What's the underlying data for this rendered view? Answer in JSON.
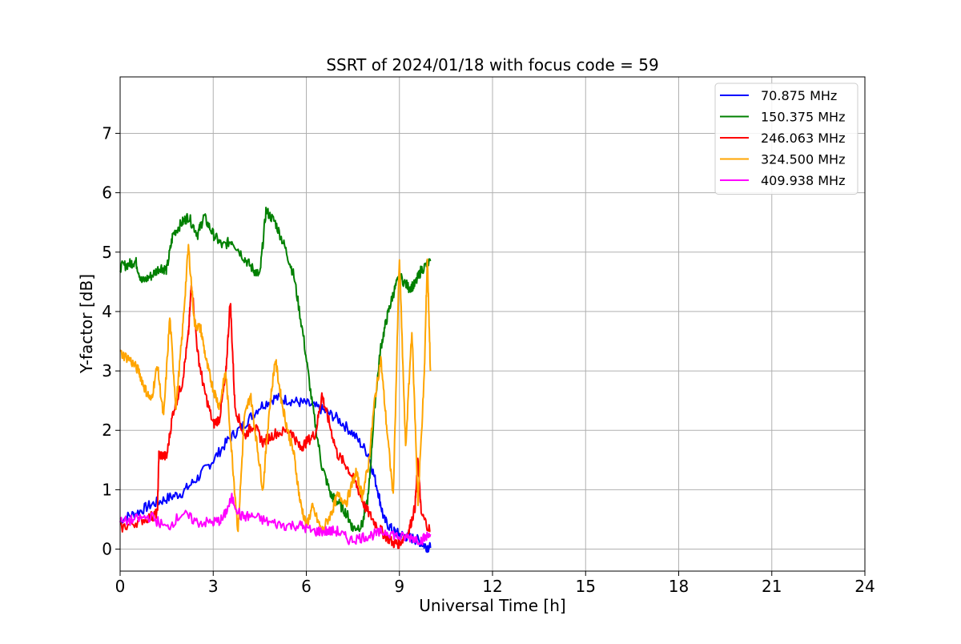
{
  "chart_data": {
    "type": "line",
    "title": "SSRT of 2024/01/18 with focus code = 59",
    "xlabel": "Universal Time [h]",
    "ylabel": "Y-factor [dB]",
    "xlim": [
      0,
      24
    ],
    "ylim": [
      -0.37,
      7.95
    ],
    "xticks": [
      0,
      3,
      6,
      9,
      12,
      15,
      18,
      21,
      24
    ],
    "yticks": [
      0,
      1,
      2,
      3,
      4,
      5,
      6,
      7
    ],
    "grid": true,
    "legend_position": "top-right",
    "series": [
      {
        "name": " 70.875 MHz",
        "color": "#0000ff",
        "points": [
          [
            0,
            0.5
          ],
          [
            0.5,
            0.6
          ],
          [
            1,
            0.75
          ],
          [
            1.5,
            0.85
          ],
          [
            2,
            0.95
          ],
          [
            2.5,
            1.2
          ],
          [
            3,
            1.5
          ],
          [
            3.5,
            1.85
          ],
          [
            4,
            2.1
          ],
          [
            4.5,
            2.4
          ],
          [
            5,
            2.55
          ],
          [
            5.5,
            2.5
          ],
          [
            6,
            2.45
          ],
          [
            6.5,
            2.35
          ],
          [
            7,
            2.2
          ],
          [
            7.5,
            1.95
          ],
          [
            8,
            1.6
          ],
          [
            8.3,
            1.0
          ],
          [
            8.5,
            0.5
          ],
          [
            8.8,
            0.3
          ],
          [
            9,
            0.25
          ],
          [
            9.3,
            0.2
          ],
          [
            9.6,
            0.15
          ],
          [
            9.85,
            0.05
          ],
          [
            10,
            0.02
          ]
        ]
      },
      {
        "name": "150.375 MHz",
        "color": "#008000",
        "points": [
          [
            0,
            4.75
          ],
          [
            0.3,
            4.8
          ],
          [
            0.5,
            4.85
          ],
          [
            0.7,
            4.5
          ],
          [
            1,
            4.6
          ],
          [
            1.3,
            4.75
          ],
          [
            1.5,
            4.7
          ],
          [
            1.7,
            5.3
          ],
          [
            2,
            5.5
          ],
          [
            2.2,
            5.6
          ],
          [
            2.5,
            5.3
          ],
          [
            2.7,
            5.6
          ],
          [
            3,
            5.3
          ],
          [
            3.3,
            5.1
          ],
          [
            3.6,
            5.2
          ],
          [
            4,
            4.9
          ],
          [
            4.3,
            4.7
          ],
          [
            4.5,
            4.6
          ],
          [
            4.7,
            5.7
          ],
          [
            5,
            5.5
          ],
          [
            5.3,
            5.1
          ],
          [
            5.6,
            4.6
          ],
          [
            5.9,
            3.6
          ],
          [
            6.2,
            2.4
          ],
          [
            6.5,
            1.4
          ],
          [
            6.8,
            0.9
          ],
          [
            7,
            0.8
          ],
          [
            7.3,
            0.6
          ],
          [
            7.5,
            0.35
          ],
          [
            7.8,
            0.4
          ],
          [
            8,
            0.9
          ],
          [
            8.2,
            2.4
          ],
          [
            8.4,
            3.4
          ],
          [
            8.6,
            3.9
          ],
          [
            8.8,
            4.3
          ],
          [
            9,
            4.6
          ],
          [
            9.3,
            4.4
          ],
          [
            9.5,
            4.45
          ],
          [
            9.7,
            4.7
          ],
          [
            10,
            4.85
          ]
        ]
      },
      {
        "name": "246.063 MHz",
        "color": "#ff0000",
        "points": [
          [
            0,
            0.35
          ],
          [
            0.5,
            0.45
          ],
          [
            1,
            0.55
          ],
          [
            1.2,
            0.6
          ],
          [
            1.25,
            1.6
          ],
          [
            1.5,
            1.55
          ],
          [
            1.7,
            2.3
          ],
          [
            2,
            2.8
          ],
          [
            2.2,
            3.6
          ],
          [
            2.3,
            4.5
          ],
          [
            2.5,
            3.3
          ],
          [
            2.7,
            2.7
          ],
          [
            3,
            2.1
          ],
          [
            3.2,
            2.2
          ],
          [
            3.4,
            2.9
          ],
          [
            3.55,
            4.2
          ],
          [
            3.7,
            2.4
          ],
          [
            4,
            1.9
          ],
          [
            4.3,
            2.1
          ],
          [
            4.6,
            1.8
          ],
          [
            5,
            1.95
          ],
          [
            5.5,
            2.0
          ],
          [
            5.8,
            1.7
          ],
          [
            6,
            1.8
          ],
          [
            6.3,
            1.95
          ],
          [
            6.5,
            2.6
          ],
          [
            6.7,
            2.2
          ],
          [
            7,
            1.6
          ],
          [
            7.3,
            1.4
          ],
          [
            7.6,
            1.1
          ],
          [
            7.9,
            0.7
          ],
          [
            8.2,
            0.45
          ],
          [
            8.5,
            0.25
          ],
          [
            8.8,
            0.1
          ],
          [
            9,
            0.1
          ],
          [
            9.3,
            0.3
          ],
          [
            9.5,
            0.7
          ],
          [
            9.6,
            1.5
          ],
          [
            9.7,
            0.6
          ],
          [
            10,
            0.3
          ]
        ]
      },
      {
        "name": "324.500 MHz",
        "color": "#ffa500",
        "points": [
          [
            0,
            3.3
          ],
          [
            0.3,
            3.2
          ],
          [
            0.6,
            3.0
          ],
          [
            0.8,
            2.7
          ],
          [
            1,
            2.5
          ],
          [
            1.2,
            3.1
          ],
          [
            1.4,
            2.2
          ],
          [
            1.6,
            3.9
          ],
          [
            1.8,
            2.4
          ],
          [
            2,
            3.6
          ],
          [
            2.2,
            5.1
          ],
          [
            2.4,
            3.8
          ],
          [
            2.6,
            3.7
          ],
          [
            2.8,
            3.1
          ],
          [
            3,
            2.7
          ],
          [
            3.2,
            2.4
          ],
          [
            3.4,
            3.0
          ],
          [
            3.6,
            1.6
          ],
          [
            3.8,
            0.3
          ],
          [
            4,
            2.2
          ],
          [
            4.2,
            2.6
          ],
          [
            4.4,
            1.8
          ],
          [
            4.6,
            1.0
          ],
          [
            4.8,
            2.3
          ],
          [
            5,
            3.2
          ],
          [
            5.2,
            2.5
          ],
          [
            5.4,
            2.0
          ],
          [
            5.6,
            1.6
          ],
          [
            5.8,
            0.8
          ],
          [
            6,
            0.4
          ],
          [
            6.2,
            0.7
          ],
          [
            6.5,
            0.3
          ],
          [
            6.8,
            0.6
          ],
          [
            7,
            0.9
          ],
          [
            7.3,
            0.8
          ],
          [
            7.6,
            1.3
          ],
          [
            7.8,
            0.9
          ],
          [
            8,
            1.4
          ],
          [
            8.2,
            2.5
          ],
          [
            8.4,
            3.2
          ],
          [
            8.6,
            2.0
          ],
          [
            8.8,
            0.9
          ],
          [
            9,
            4.9
          ],
          [
            9.2,
            1.7
          ],
          [
            9.4,
            3.7
          ],
          [
            9.6,
            0.8
          ],
          [
            9.8,
            2.9
          ],
          [
            9.9,
            4.9
          ],
          [
            10,
            3.0
          ]
        ]
      },
      {
        "name": "409.938 MHz",
        "color": "#ff00ff",
        "points": [
          [
            0,
            0.45
          ],
          [
            0.5,
            0.5
          ],
          [
            1,
            0.55
          ],
          [
            1.5,
            0.35
          ],
          [
            2,
            0.6
          ],
          [
            2.5,
            0.45
          ],
          [
            3,
            0.45
          ],
          [
            3.3,
            0.5
          ],
          [
            3.6,
            0.85
          ],
          [
            3.9,
            0.55
          ],
          [
            4.3,
            0.55
          ],
          [
            4.8,
            0.45
          ],
          [
            5.3,
            0.4
          ],
          [
            5.8,
            0.4
          ],
          [
            6.2,
            0.3
          ],
          [
            6.6,
            0.3
          ],
          [
            7,
            0.3
          ],
          [
            7.4,
            0.15
          ],
          [
            7.8,
            0.2
          ],
          [
            8.2,
            0.25
          ],
          [
            8.6,
            0.3
          ],
          [
            9,
            0.2
          ],
          [
            9.4,
            0.2
          ],
          [
            9.7,
            0.15
          ],
          [
            10,
            0.25
          ]
        ]
      }
    ]
  }
}
